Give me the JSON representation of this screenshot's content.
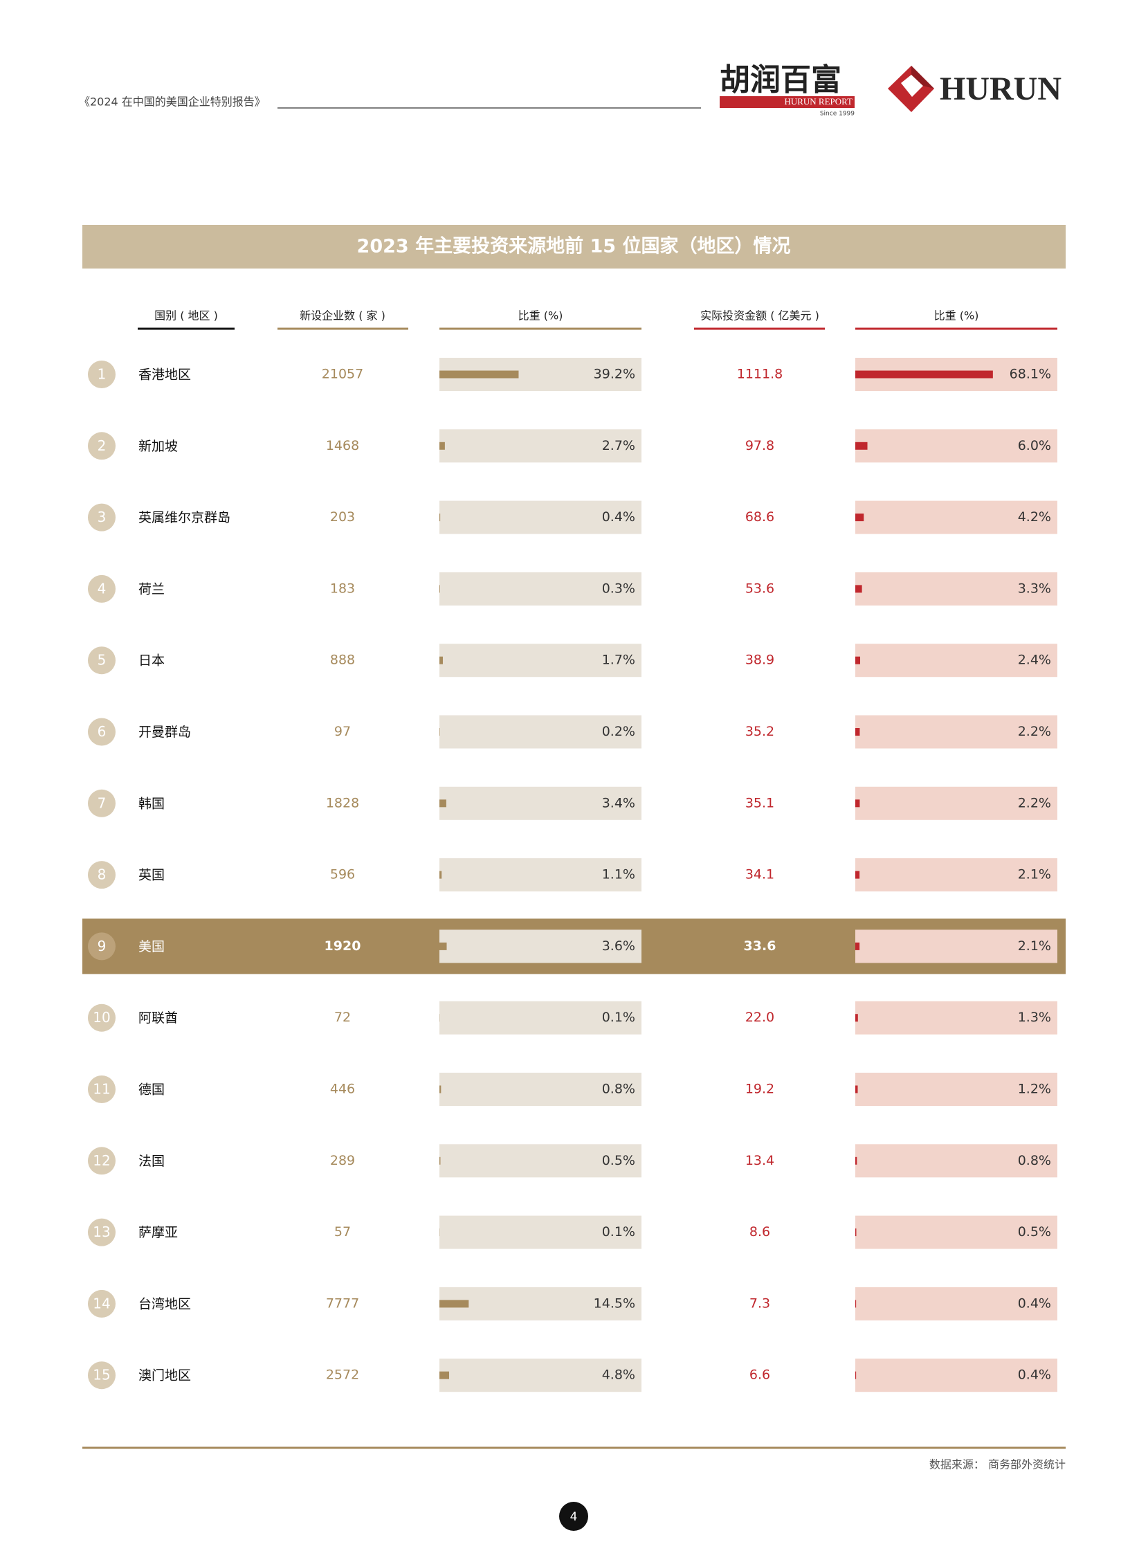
{
  "header": {
    "report_title": "《2024 在中国的美国企业特别报告》",
    "logo_cn": "胡润百富",
    "logo_report": "HURUN REPORT",
    "logo_since": "Since 1999",
    "logo_en": "HURUN"
  },
  "table": {
    "title": "2023 年主要投资来源地前 15 位国家（地区）情况",
    "columns": [
      "国别 ( 地区 )",
      "新设企业数 ( 家 )",
      "比重 (%)",
      "实际投资金额 ( 亿美元 )",
      "比重 (%)"
    ],
    "highlight_row": 8,
    "rows": [
      {
        "rank": "1",
        "name": "香港地区",
        "companies": "21057",
        "company_share": 39.2,
        "company_share_label": "39.2%",
        "investment": "1111.8",
        "investment_share": 68.1,
        "investment_share_label": "68.1%"
      },
      {
        "rank": "2",
        "name": "新加坡",
        "companies": "1468",
        "company_share": 2.7,
        "company_share_label": "2.7%",
        "investment": "97.8",
        "investment_share": 6.0,
        "investment_share_label": "6.0%"
      },
      {
        "rank": "3",
        "name": "英属维尔京群岛",
        "companies": "203",
        "company_share": 0.4,
        "company_share_label": "0.4%",
        "investment": "68.6",
        "investment_share": 4.2,
        "investment_share_label": "4.2%"
      },
      {
        "rank": "4",
        "name": "荷兰",
        "companies": "183",
        "company_share": 0.3,
        "company_share_label": "0.3%",
        "investment": "53.6",
        "investment_share": 3.3,
        "investment_share_label": "3.3%"
      },
      {
        "rank": "5",
        "name": "日本",
        "companies": "888",
        "company_share": 1.7,
        "company_share_label": "1.7%",
        "investment": "38.9",
        "investment_share": 2.4,
        "investment_share_label": "2.4%"
      },
      {
        "rank": "6",
        "name": "开曼群岛",
        "companies": "97",
        "company_share": 0.2,
        "company_share_label": "0.2%",
        "investment": "35.2",
        "investment_share": 2.2,
        "investment_share_label": "2.2%"
      },
      {
        "rank": "7",
        "name": "韩国",
        "companies": "1828",
        "company_share": 3.4,
        "company_share_label": "3.4%",
        "investment": "35.1",
        "investment_share": 2.2,
        "investment_share_label": "2.2%"
      },
      {
        "rank": "8",
        "name": "英国",
        "companies": "596",
        "company_share": 1.1,
        "company_share_label": "1.1%",
        "investment": "34.1",
        "investment_share": 2.1,
        "investment_share_label": "2.1%"
      },
      {
        "rank": "9",
        "name": "美国",
        "companies": "1920",
        "company_share": 3.6,
        "company_share_label": "3.6%",
        "investment": "33.6",
        "investment_share": 2.1,
        "investment_share_label": "2.1%"
      },
      {
        "rank": "10",
        "name": "阿联酋",
        "companies": "72",
        "company_share": 0.1,
        "company_share_label": "0.1%",
        "investment": "22.0",
        "investment_share": 1.3,
        "investment_share_label": "1.3%"
      },
      {
        "rank": "11",
        "name": "德国",
        "companies": "446",
        "company_share": 0.8,
        "company_share_label": "0.8%",
        "investment": "19.2",
        "investment_share": 1.2,
        "investment_share_label": "1.2%"
      },
      {
        "rank": "12",
        "name": "法国",
        "companies": "289",
        "company_share": 0.5,
        "company_share_label": "0.5%",
        "investment": "13.4",
        "investment_share": 0.8,
        "investment_share_label": "0.8%"
      },
      {
        "rank": "13",
        "name": "萨摩亚",
        "companies": "57",
        "company_share": 0.1,
        "company_share_label": "0.1%",
        "investment": "8.6",
        "investment_share": 0.5,
        "investment_share_label": "0.5%"
      },
      {
        "rank": "14",
        "name": "台湾地区",
        "companies": "7777",
        "company_share": 14.5,
        "company_share_label": "14.5%",
        "investment": "7.3",
        "investment_share": 0.4,
        "investment_share_label": "0.4%"
      },
      {
        "rank": "15",
        "name": "澳门地区",
        "companies": "2572",
        "company_share": 4.8,
        "company_share_label": "4.8%",
        "investment": "6.6",
        "investment_share": 0.4,
        "investment_share_label": "0.4%"
      }
    ]
  },
  "footer": {
    "source": "数据来源： 商务部外资统计",
    "page_number": "4"
  }
}
